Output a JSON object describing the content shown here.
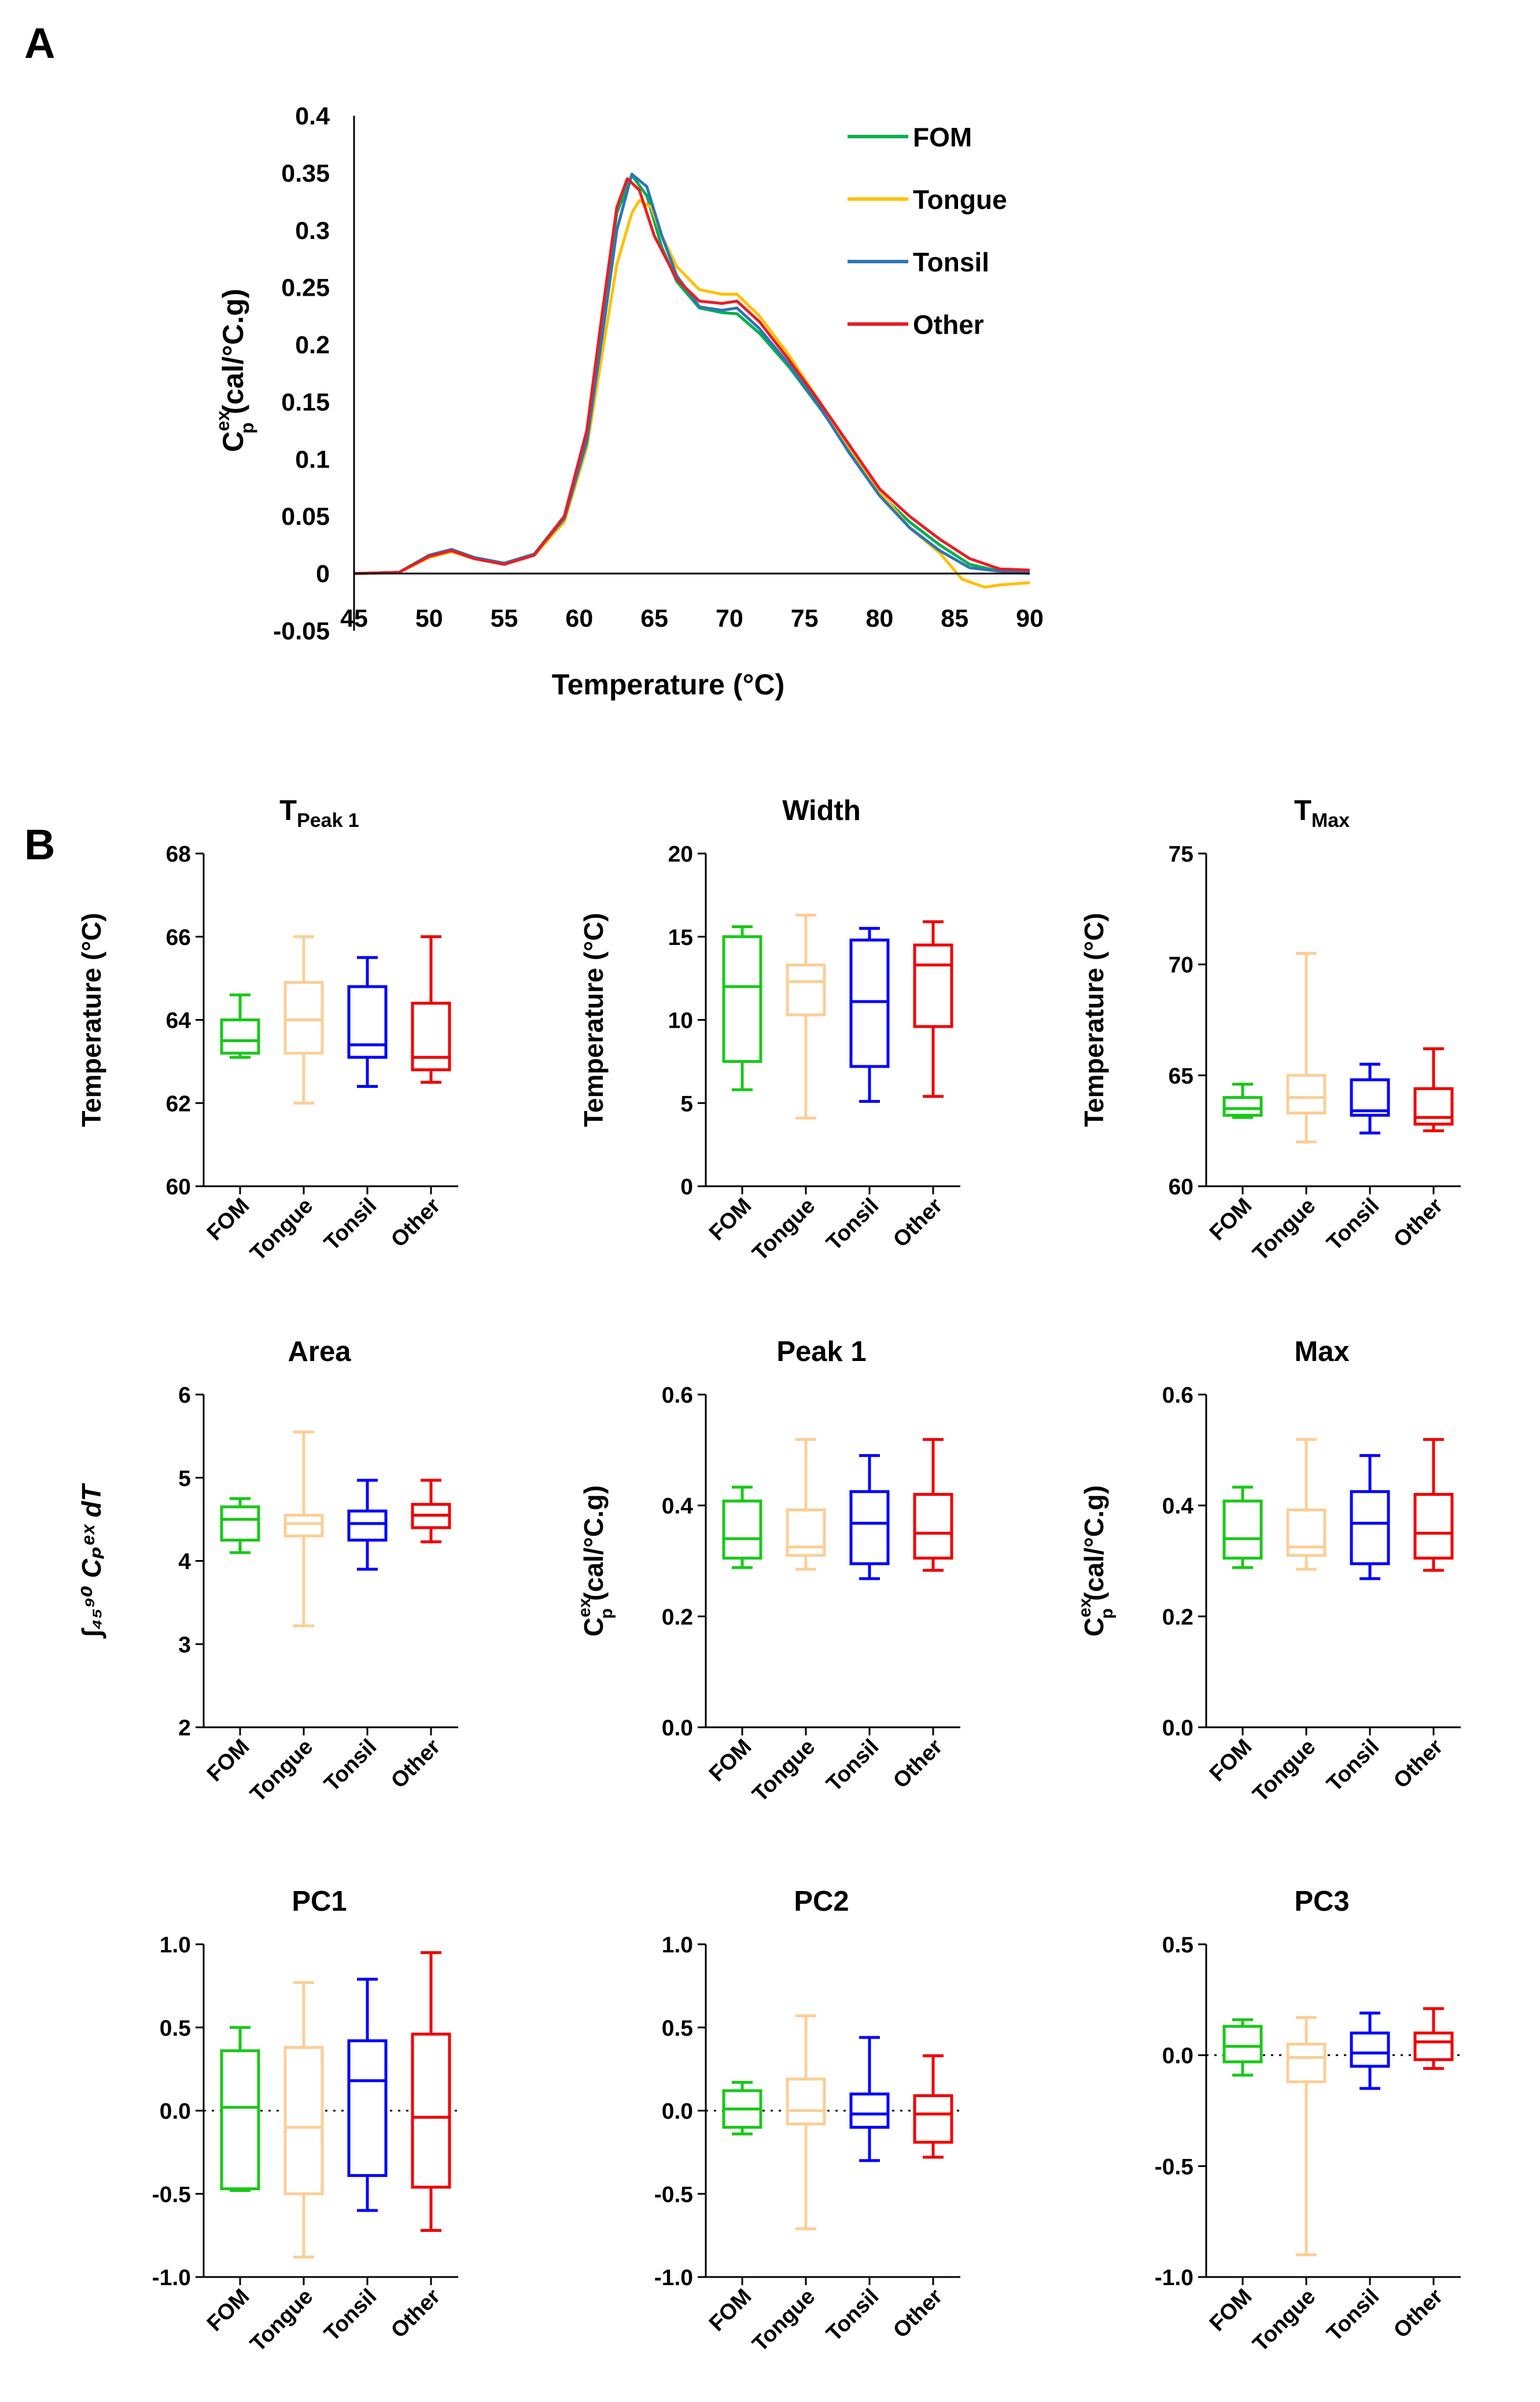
{
  "panel_a_letter": "A",
  "panel_b_letter": "B",
  "chart_data": [
    {
      "type": "line",
      "id": "A",
      "xlabel": "Temperature (°C)",
      "ylabel_base": "C",
      "ylabel_sub": "p",
      "ylabel_sup": "ex",
      "ylabel_units": " (cal/°C.g)",
      "xlim": [
        45,
        90
      ],
      "ylim": [
        -0.05,
        0.4
      ],
      "xticks": [
        45,
        50,
        55,
        60,
        65,
        70,
        75,
        80,
        85,
        90
      ],
      "yticks": [
        "-0.05",
        "0",
        "0.05",
        "0.1",
        "0.15",
        "0.2",
        "0.25",
        "0.3",
        "0.35",
        "0.4"
      ],
      "legend_position": "top-right",
      "series": [
        {
          "name": "FOM",
          "color": "#00b050",
          "points": [
            [
              45,
              0
            ],
            [
              48,
              0.001
            ],
            [
              50,
              0.016
            ],
            [
              51.5,
              0.021
            ],
            [
              53,
              0.014
            ],
            [
              55,
              0.009
            ],
            [
              57,
              0.017
            ],
            [
              59,
              0.05
            ],
            [
              60.5,
              0.12
            ],
            [
              61.5,
              0.22
            ],
            [
              62.5,
              0.315
            ],
            [
              63.5,
              0.348
            ],
            [
              64.5,
              0.33
            ],
            [
              65.5,
              0.285
            ],
            [
              66.5,
              0.255
            ],
            [
              68,
              0.232
            ],
            [
              69.5,
              0.228
            ],
            [
              70.5,
              0.227
            ],
            [
              72,
              0.21
            ],
            [
              74,
              0.18
            ],
            [
              76,
              0.145
            ],
            [
              78,
              0.108
            ],
            [
              80,
              0.07
            ],
            [
              82,
              0.045
            ],
            [
              84,
              0.025
            ],
            [
              86,
              0.008
            ],
            [
              88,
              0.002
            ],
            [
              90,
              0.0
            ]
          ]
        },
        {
          "name": "Tongue",
          "color": "#ffc000",
          "points": [
            [
              45,
              0
            ],
            [
              48,
              0.001
            ],
            [
              50,
              0.014
            ],
            [
              51.5,
              0.019
            ],
            [
              53,
              0.013
            ],
            [
              55,
              0.009
            ],
            [
              57,
              0.016
            ],
            [
              59,
              0.045
            ],
            [
              60.5,
              0.11
            ],
            [
              61.5,
              0.19
            ],
            [
              62.5,
              0.27
            ],
            [
              63.5,
              0.315
            ],
            [
              64,
              0.326
            ],
            [
              64.8,
              0.32
            ],
            [
              65.5,
              0.295
            ],
            [
              66.5,
              0.268
            ],
            [
              68,
              0.248
            ],
            [
              69.5,
              0.244
            ],
            [
              70.5,
              0.244
            ],
            [
              72,
              0.225
            ],
            [
              74,
              0.19
            ],
            [
              76,
              0.15
            ],
            [
              78,
              0.11
            ],
            [
              80,
              0.072
            ],
            [
              82,
              0.04
            ],
            [
              84,
              0.018
            ],
            [
              85.5,
              -0.005
            ],
            [
              87,
              -0.012
            ],
            [
              88,
              -0.01
            ],
            [
              90,
              -0.008
            ]
          ]
        },
        {
          "name": "Tonsil",
          "color": "#2e75b6",
          "points": [
            [
              45,
              0
            ],
            [
              48,
              0.001
            ],
            [
              50,
              0.016
            ],
            [
              51.5,
              0.021
            ],
            [
              53,
              0.014
            ],
            [
              55,
              0.009
            ],
            [
              57,
              0.017
            ],
            [
              59,
              0.048
            ],
            [
              60.5,
              0.115
            ],
            [
              61.5,
              0.205
            ],
            [
              62.5,
              0.3
            ],
            [
              63.5,
              0.349
            ],
            [
              64.5,
              0.338
            ],
            [
              65.5,
              0.295
            ],
            [
              66.5,
              0.26
            ],
            [
              68,
              0.233
            ],
            [
              69.5,
              0.23
            ],
            [
              70.5,
              0.232
            ],
            [
              72,
              0.214
            ],
            [
              74,
              0.182
            ],
            [
              76,
              0.146
            ],
            [
              78,
              0.105
            ],
            [
              80,
              0.068
            ],
            [
              82,
              0.04
            ],
            [
              84,
              0.02
            ],
            [
              86,
              0.005
            ],
            [
              88,
              0.002
            ],
            [
              90,
              0.001
            ]
          ]
        },
        {
          "name": "Other",
          "color": "#e81e25",
          "points": [
            [
              45,
              0
            ],
            [
              48,
              0.001
            ],
            [
              50,
              0.015
            ],
            [
              51.5,
              0.02
            ],
            [
              53,
              0.013
            ],
            [
              55,
              0.008
            ],
            [
              57,
              0.016
            ],
            [
              59,
              0.05
            ],
            [
              60.5,
              0.125
            ],
            [
              61.5,
              0.225
            ],
            [
              62.5,
              0.32
            ],
            [
              63.2,
              0.345
            ],
            [
              64,
              0.335
            ],
            [
              65,
              0.295
            ],
            [
              66.5,
              0.257
            ],
            [
              68,
              0.238
            ],
            [
              69.5,
              0.236
            ],
            [
              70.5,
              0.238
            ],
            [
              72,
              0.22
            ],
            [
              74,
              0.186
            ],
            [
              76,
              0.15
            ],
            [
              78,
              0.112
            ],
            [
              80,
              0.074
            ],
            [
              82,
              0.05
            ],
            [
              84,
              0.03
            ],
            [
              86,
              0.013
            ],
            [
              88,
              0.004
            ],
            [
              90,
              0.003
            ]
          ]
        }
      ]
    },
    {
      "type": "boxplot",
      "id": "tpeak1",
      "title_main": "T",
      "title_sub": "Peak 1",
      "ylabel": "Temperature (°C)",
      "ylim": [
        60,
        68
      ],
      "yticks": [
        "60",
        "62",
        "64",
        "66",
        "68"
      ],
      "categories": [
        "FOM",
        "Tongue",
        "Tonsil",
        "Other"
      ],
      "colors": [
        "#19c819",
        "#fbcf97",
        "#0000ff",
        "#f00000"
      ],
      "boxes": [
        {
          "min": 63.1,
          "q1": 63.2,
          "median": 63.5,
          "q3": 64.0,
          "max": 64.6
        },
        {
          "min": 62.0,
          "q1": 63.2,
          "median": 64.0,
          "q3": 64.9,
          "max": 66.0
        },
        {
          "min": 62.4,
          "q1": 63.1,
          "median": 63.4,
          "q3": 64.8,
          "max": 65.5
        },
        {
          "min": 62.5,
          "q1": 62.8,
          "median": 63.1,
          "q3": 64.4,
          "max": 66.0
        }
      ]
    },
    {
      "type": "boxplot",
      "id": "width",
      "title_main": "Width",
      "title_sub": "",
      "ylabel": "Temperature (°C)",
      "ylim": [
        0,
        20
      ],
      "yticks": [
        "0",
        "5",
        "10",
        "15",
        "20"
      ],
      "categories": [
        "FOM",
        "Tongue",
        "Tonsil",
        "Other"
      ],
      "colors": [
        "#19c819",
        "#fbcf97",
        "#0000ff",
        "#f00000"
      ],
      "boxes": [
        {
          "min": 5.8,
          "q1": 7.5,
          "median": 12.0,
          "q3": 15.0,
          "max": 15.6
        },
        {
          "min": 4.1,
          "q1": 10.3,
          "median": 12.3,
          "q3": 13.3,
          "max": 16.3
        },
        {
          "min": 5.1,
          "q1": 7.2,
          "median": 11.1,
          "q3": 14.8,
          "max": 15.5
        },
        {
          "min": 5.4,
          "q1": 9.6,
          "median": 13.3,
          "q3": 14.5,
          "max": 15.9
        }
      ]
    },
    {
      "type": "boxplot",
      "id": "tmax",
      "title_main": "T",
      "title_sub": "Max",
      "ylabel": "Temperature (°C)",
      "ylim": [
        60,
        75
      ],
      "yticks": [
        "60",
        "65",
        "70",
        "75"
      ],
      "categories": [
        "FOM",
        "Tongue",
        "Tonsil",
        "Other"
      ],
      "colors": [
        "#19c819",
        "#fbcf97",
        "#0000ff",
        "#f00000"
      ],
      "boxes": [
        {
          "min": 63.1,
          "q1": 63.2,
          "median": 63.5,
          "q3": 64.0,
          "max": 64.6
        },
        {
          "min": 62.0,
          "q1": 63.3,
          "median": 64.0,
          "q3": 65.0,
          "max": 70.5
        },
        {
          "min": 62.4,
          "q1": 63.2,
          "median": 63.4,
          "q3": 64.8,
          "max": 65.5
        },
        {
          "min": 62.5,
          "q1": 62.8,
          "median": 63.1,
          "q3": 64.4,
          "max": 66.2
        }
      ]
    },
    {
      "type": "boxplot",
      "id": "area",
      "title_main": "Area",
      "title_sub": "",
      "ylabel": "∫₄₅⁹⁰ Cₚᵉˣ dT",
      "ylim": [
        2,
        6
      ],
      "yticks": [
        "2",
        "3",
        "4",
        "5",
        "6"
      ],
      "categories": [
        "FOM",
        "Tongue",
        "Tonsil",
        "Other"
      ],
      "colors": [
        "#19c819",
        "#fbcf97",
        "#0000ff",
        "#f00000"
      ],
      "boxes": [
        {
          "min": 4.1,
          "q1": 4.25,
          "median": 4.5,
          "q3": 4.65,
          "max": 4.75
        },
        {
          "min": 3.22,
          "q1": 4.3,
          "median": 4.45,
          "q3": 4.55,
          "max": 5.55
        },
        {
          "min": 3.9,
          "q1": 4.25,
          "median": 4.45,
          "q3": 4.6,
          "max": 4.97
        },
        {
          "min": 4.23,
          "q1": 4.4,
          "median": 4.55,
          "q3": 4.68,
          "max": 4.97
        }
      ]
    },
    {
      "type": "boxplot",
      "id": "peak1",
      "title_main": "Peak 1",
      "title_sub": "",
      "ylabel_base": "C",
      "ylabel_sub": "p",
      "ylabel_sup": "ex",
      "ylabel_units": " (cal/°C.g)",
      "ylim": [
        0,
        0.6
      ],
      "yticks": [
        "0.0",
        "0.2",
        "0.4",
        "0.6"
      ],
      "categories": [
        "FOM",
        "Tongue",
        "Tonsil",
        "Other"
      ],
      "colors": [
        "#19c819",
        "#fbcf97",
        "#0000ff",
        "#f00000"
      ],
      "boxes": [
        {
          "min": 0.288,
          "q1": 0.305,
          "median": 0.34,
          "q3": 0.408,
          "max": 0.433
        },
        {
          "min": 0.285,
          "q1": 0.31,
          "median": 0.325,
          "q3": 0.392,
          "max": 0.519
        },
        {
          "min": 0.268,
          "q1": 0.295,
          "median": 0.368,
          "q3": 0.425,
          "max": 0.49
        },
        {
          "min": 0.283,
          "q1": 0.305,
          "median": 0.35,
          "q3": 0.42,
          "max": 0.519
        }
      ]
    },
    {
      "type": "boxplot",
      "id": "max",
      "title_main": "Max",
      "title_sub": "",
      "ylabel_base": "C",
      "ylabel_sub": "p",
      "ylabel_sup": "ex",
      "ylabel_units": " (cal/°C.g)",
      "ylim": [
        0,
        0.6
      ],
      "yticks": [
        "0.0",
        "0.2",
        "0.4",
        "0.6"
      ],
      "categories": [
        "FOM",
        "Tongue",
        "Tonsil",
        "Other"
      ],
      "colors": [
        "#19c819",
        "#fbcf97",
        "#0000ff",
        "#f00000"
      ],
      "boxes": [
        {
          "min": 0.288,
          "q1": 0.305,
          "median": 0.34,
          "q3": 0.408,
          "max": 0.433
        },
        {
          "min": 0.285,
          "q1": 0.31,
          "median": 0.325,
          "q3": 0.392,
          "max": 0.519
        },
        {
          "min": 0.268,
          "q1": 0.295,
          "median": 0.368,
          "q3": 0.425,
          "max": 0.49
        },
        {
          "min": 0.283,
          "q1": 0.305,
          "median": 0.35,
          "q3": 0.42,
          "max": 0.519
        }
      ]
    },
    {
      "type": "boxplot",
      "id": "pc1",
      "title_main": "PC1",
      "title_sub": "",
      "ylabel": "",
      "ylim": [
        -1,
        1
      ],
      "yticks": [
        "-1.0",
        "-0.5",
        "0.0",
        "0.5",
        "1.0"
      ],
      "zero_line": true,
      "categories": [
        "FOM",
        "Tongue",
        "Tonsil",
        "Other"
      ],
      "colors": [
        "#19c819",
        "#fbcf97",
        "#0000ff",
        "#f00000"
      ],
      "boxes": [
        {
          "min": -0.48,
          "q1": -0.47,
          "median": 0.02,
          "q3": 0.36,
          "max": 0.5
        },
        {
          "min": -0.88,
          "q1": -0.5,
          "median": -0.1,
          "q3": 0.38,
          "max": 0.77
        },
        {
          "min": -0.6,
          "q1": -0.39,
          "median": 0.18,
          "q3": 0.42,
          "max": 0.79
        },
        {
          "min": -0.72,
          "q1": -0.46,
          "median": -0.04,
          "q3": 0.46,
          "max": 0.95
        }
      ]
    },
    {
      "type": "boxplot",
      "id": "pc2",
      "title_main": "PC2",
      "title_sub": "",
      "ylabel": "",
      "ylim": [
        -1,
        1
      ],
      "yticks": [
        "-1.0",
        "-0.5",
        "0.0",
        "0.5",
        "1.0"
      ],
      "zero_line": true,
      "categories": [
        "FOM",
        "Tongue",
        "Tonsil",
        "Other"
      ],
      "colors": [
        "#19c819",
        "#fbcf97",
        "#0000ff",
        "#f00000"
      ],
      "boxes": [
        {
          "min": -0.14,
          "q1": -0.1,
          "median": 0.01,
          "q3": 0.12,
          "max": 0.17
        },
        {
          "min": -0.71,
          "q1": -0.08,
          "median": 0.0,
          "q3": 0.19,
          "max": 0.57
        },
        {
          "min": -0.3,
          "q1": -0.1,
          "median": -0.02,
          "q3": 0.1,
          "max": 0.44
        },
        {
          "min": -0.28,
          "q1": -0.19,
          "median": -0.02,
          "q3": 0.09,
          "max": 0.33
        }
      ]
    },
    {
      "type": "boxplot",
      "id": "pc3",
      "title_main": "PC3",
      "title_sub": "",
      "ylabel": "",
      "ylim": [
        -1,
        0.5
      ],
      "yticks": [
        "-1.0",
        "-0.5",
        "0.0",
        "0.5"
      ],
      "zero_line": true,
      "categories": [
        "FOM",
        "Tongue",
        "Tonsil",
        "Other"
      ],
      "colors": [
        "#19c819",
        "#fbcf97",
        "#0000ff",
        "#f00000"
      ],
      "boxes": [
        {
          "min": -0.09,
          "q1": -0.03,
          "median": 0.04,
          "q3": 0.13,
          "max": 0.16
        },
        {
          "min": -0.9,
          "q1": -0.12,
          "median": -0.01,
          "q3": 0.05,
          "max": 0.17
        },
        {
          "min": -0.15,
          "q1": -0.05,
          "median": 0.01,
          "q3": 0.1,
          "max": 0.19
        },
        {
          "min": -0.06,
          "q1": -0.02,
          "median": 0.06,
          "q3": 0.1,
          "max": 0.21
        }
      ]
    }
  ]
}
